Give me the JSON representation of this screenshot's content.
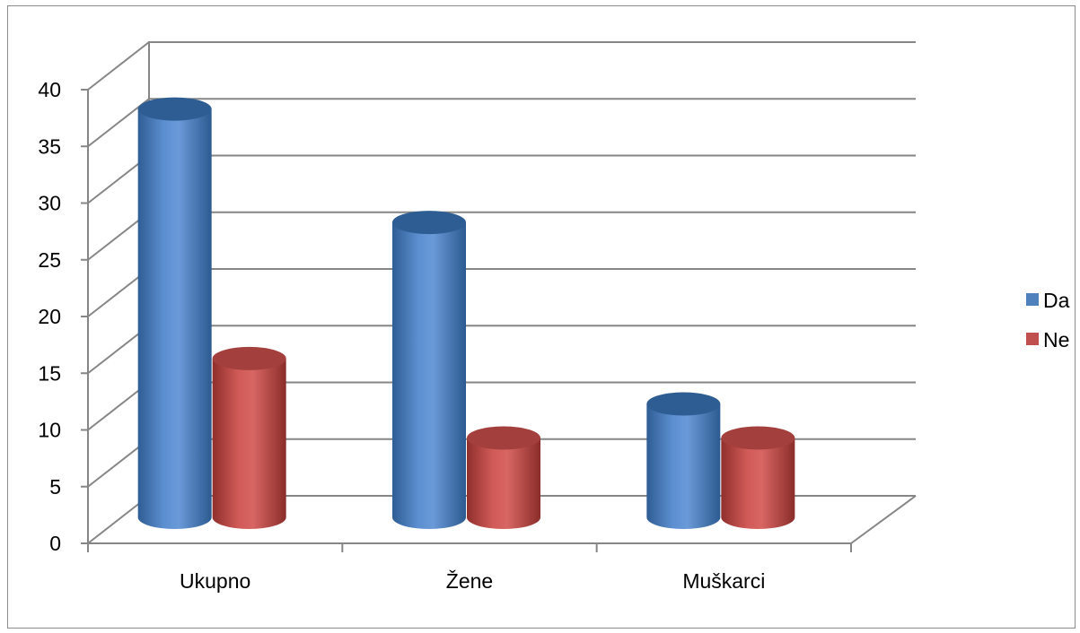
{
  "chart_data": {
    "type": "bar",
    "style": "3d-cylinder",
    "categories": [
      "Ukupno",
      "Žene",
      "Muškarci"
    ],
    "series": [
      {
        "name": "Da",
        "values": [
          36,
          26,
          10
        ],
        "color": "#4f81bd"
      },
      {
        "name": "Ne",
        "values": [
          14,
          7,
          7
        ],
        "color": "#c0504d"
      }
    ],
    "ylim": [
      0,
      40
    ],
    "yticks": [
      "0",
      "5",
      "10",
      "15",
      "20",
      "25",
      "30",
      "35",
      "40"
    ],
    "grid": true,
    "legend": "right"
  }
}
